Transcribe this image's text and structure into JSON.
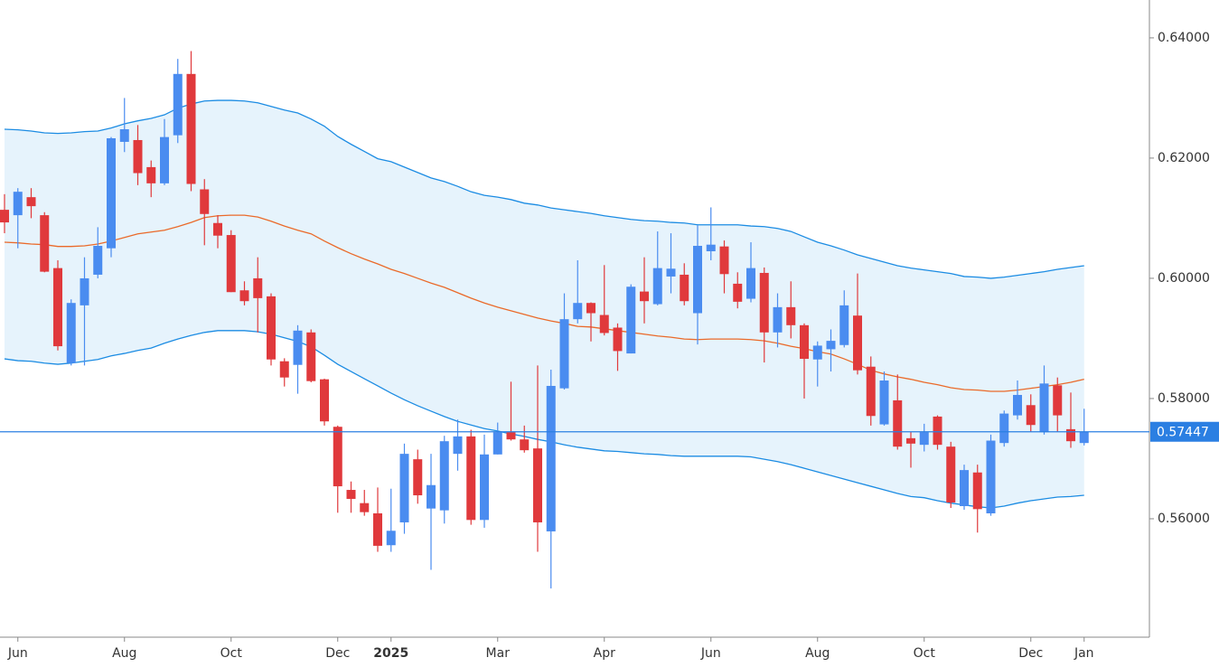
{
  "chart_data": {
    "type": "candlestick",
    "categories": [
      null,
      "Jun",
      null,
      null,
      null,
      null,
      null,
      null,
      null,
      "Aug",
      null,
      null,
      null,
      null,
      null,
      null,
      null,
      "Oct",
      null,
      null,
      null,
      null,
      null,
      null,
      null,
      "Dec",
      null,
      null,
      null,
      "2025",
      null,
      null,
      null,
      null,
      null,
      null,
      null,
      "Mar",
      null,
      null,
      null,
      null,
      null,
      null,
      null,
      "Apr",
      null,
      null,
      null,
      null,
      null,
      null,
      null,
      "Jun",
      null,
      null,
      null,
      null,
      null,
      null,
      null,
      "Aug",
      null,
      null,
      null,
      null,
      null,
      null,
      null,
      "Oct",
      null,
      null,
      null,
      null,
      null,
      null,
      null,
      "Dec",
      null,
      null,
      null,
      "Jan"
    ],
    "open": [
      0.6114,
      0.6105,
      0.6135,
      0.6105,
      0.6017,
      0.5859,
      0.5955,
      0.6006,
      0.605,
      0.6227,
      0.623,
      0.6185,
      0.6158,
      0.6238,
      0.634,
      0.6148,
      0.6092,
      0.6072,
      0.598,
      0.6,
      0.597,
      0.5862,
      0.5856,
      0.591,
      0.5832,
      0.5753,
      0.5648,
      0.5626,
      0.5609,
      0.5556,
      0.5594,
      0.5699,
      0.5617,
      0.5614,
      0.5708,
      0.5737,
      0.5598,
      0.5707,
      0.5744,
      0.5732,
      0.5717,
      0.5579,
      0.5817,
      0.5932,
      0.5959,
      0.5939,
      0.5918,
      0.5875,
      0.5978,
      0.5957,
      0.6003,
      0.6006,
      0.5942,
      0.6045,
      0.6053,
      0.5991,
      0.5966,
      0.6009,
      0.591,
      0.5952,
      0.5922,
      0.5865,
      0.5882,
      0.5889,
      0.5938,
      0.5853,
      0.5757,
      0.5797,
      0.5734,
      0.5723,
      0.577,
      0.572,
      0.5621,
      0.5677,
      0.5609,
      0.5726,
      0.5772,
      0.5789,
      0.5744,
      0.5822,
      0.5749,
      0.5726
    ],
    "high": [
      0.614,
      0.615,
      0.615,
      0.611,
      0.603,
      0.5965,
      0.6035,
      0.6085,
      0.6235,
      0.63,
      0.6255,
      0.6196,
      0.6265,
      0.6365,
      0.6378,
      0.6165,
      0.6105,
      0.608,
      0.5995,
      0.6035,
      0.5975,
      0.5867,
      0.5922,
      0.5915,
      0.5833,
      0.5755,
      0.5662,
      0.5648,
      0.5652,
      0.565,
      0.5725,
      0.5715,
      0.5708,
      0.5738,
      0.5765,
      0.5748,
      0.574,
      0.576,
      0.5828,
      0.5755,
      0.5855,
      0.5848,
      0.5975,
      0.603,
      0.596,
      0.6022,
      0.5925,
      0.599,
      0.6035,
      0.6078,
      0.6075,
      0.6025,
      0.6088,
      0.6118,
      0.6063,
      0.601,
      0.606,
      0.6018,
      0.5975,
      0.5995,
      0.5925,
      0.5895,
      0.5915,
      0.598,
      0.6008,
      0.587,
      0.5845,
      0.584,
      0.5745,
      0.5758,
      0.5772,
      0.5728,
      0.569,
      0.569,
      0.574,
      0.578,
      0.583,
      0.5807,
      0.5855,
      0.5835,
      0.581,
      0.5783
    ],
    "low": [
      0.6075,
      0.605,
      0.61,
      0.601,
      0.588,
      0.5855,
      0.5855,
      0.6,
      0.6035,
      0.621,
      0.6155,
      0.6135,
      0.6155,
      0.6225,
      0.6145,
      0.6055,
      0.605,
      0.5977,
      0.5955,
      0.591,
      0.5855,
      0.582,
      0.5808,
      0.5827,
      0.5755,
      0.561,
      0.561,
      0.5605,
      0.5545,
      0.5545,
      0.5575,
      0.5625,
      0.5515,
      0.5592,
      0.568,
      0.559,
      0.5585,
      0.5707,
      0.573,
      0.571,
      0.5545,
      0.5484,
      0.5815,
      0.5925,
      0.5895,
      0.5905,
      0.5846,
      0.5875,
      0.5925,
      0.5955,
      0.5975,
      0.5955,
      0.589,
      0.603,
      0.5975,
      0.595,
      0.596,
      0.586,
      0.5885,
      0.59,
      0.58,
      0.582,
      0.5845,
      0.5885,
      0.584,
      0.5755,
      0.5755,
      0.5715,
      0.5685,
      0.5712,
      0.5715,
      0.5618,
      0.5615,
      0.5577,
      0.5605,
      0.572,
      0.5765,
      0.5745,
      0.574,
      0.5745,
      0.5718,
      0.5722
    ],
    "close": [
      0.6093,
      0.6144,
      0.612,
      0.6011,
      0.5887,
      0.5959,
      0.6,
      0.6054,
      0.6233,
      0.6248,
      0.6175,
      0.6158,
      0.6235,
      0.634,
      0.6157,
      0.6107,
      0.6071,
      0.5977,
      0.5962,
      0.5967,
      0.5865,
      0.5835,
      0.5913,
      0.5829,
      0.5762,
      0.5654,
      0.5633,
      0.5611,
      0.5555,
      0.558,
      0.5708,
      0.5639,
      0.5656,
      0.5729,
      0.5737,
      0.5598,
      0.5707,
      0.5744,
      0.5732,
      0.5714,
      0.5594,
      0.5821,
      0.5932,
      0.5959,
      0.5942,
      0.5909,
      0.5879,
      0.5986,
      0.5962,
      0.6017,
      0.6016,
      0.5962,
      0.6054,
      0.6056,
      0.6007,
      0.5961,
      0.6017,
      0.591,
      0.5952,
      0.5922,
      0.5866,
      0.5888,
      0.5896,
      0.5955,
      0.5847,
      0.5771,
      0.583,
      0.572,
      0.5725,
      0.5744,
      0.5723,
      0.5627,
      0.5681,
      0.5616,
      0.573,
      0.5775,
      0.5806,
      0.5756,
      0.5825,
      0.5772,
      0.5729,
      0.5745
    ],
    "up_color": "#4a8cf0",
    "down_color": "#e0393c",
    "bands": {
      "fill": "#e6f3fc",
      "upper": {
        "color": "#1c8ce3",
        "values": [
          0.6248,
          0.6247,
          0.6245,
          0.6242,
          0.6241,
          0.6242,
          0.6244,
          0.6245,
          0.625,
          0.6257,
          0.6262,
          0.6266,
          0.6272,
          0.6283,
          0.629,
          0.6295,
          0.6296,
          0.6296,
          0.6295,
          0.6292,
          0.6286,
          0.628,
          0.6275,
          0.6265,
          0.6253,
          0.6236,
          0.6223,
          0.6211,
          0.6199,
          0.6194,
          0.6185,
          0.6176,
          0.6167,
          0.6161,
          0.6153,
          0.6144,
          0.6138,
          0.6135,
          0.6131,
          0.6125,
          0.6122,
          0.6117,
          0.6114,
          0.6111,
          0.6108,
          0.6104,
          0.6101,
          0.6098,
          0.6096,
          0.6095,
          0.6093,
          0.6092,
          0.6089,
          0.6089,
          0.6089,
          0.6089,
          0.6087,
          0.6086,
          0.6083,
          0.6078,
          0.6069,
          0.606,
          0.6054,
          0.6047,
          0.6039,
          0.6033,
          0.6027,
          0.6021,
          0.6017,
          0.6014,
          0.6011,
          0.6008,
          0.6003,
          0.6002,
          0.6,
          0.6002,
          0.6005,
          0.6008,
          0.6011,
          0.6015,
          0.6018,
          0.6021
        ]
      },
      "middle": {
        "color": "#ea6a2a",
        "values": [
          0.606,
          0.6059,
          0.6057,
          0.6056,
          0.6053,
          0.6053,
          0.6054,
          0.6057,
          0.6062,
          0.6068,
          0.6074,
          0.6077,
          0.608,
          0.6086,
          0.6093,
          0.6101,
          0.6104,
          0.6105,
          0.6105,
          0.6102,
          0.6095,
          0.6087,
          0.608,
          0.6074,
          0.6062,
          0.6051,
          0.6041,
          0.6032,
          0.6024,
          0.6015,
          0.6008,
          0.6,
          0.5992,
          0.5985,
          0.5976,
          0.5967,
          0.5959,
          0.5952,
          0.5946,
          0.594,
          0.5934,
          0.5929,
          0.5925,
          0.592,
          0.5919,
          0.5916,
          0.5913,
          0.591,
          0.5907,
          0.5904,
          0.5902,
          0.5899,
          0.5898,
          0.5899,
          0.5899,
          0.5899,
          0.5898,
          0.5896,
          0.5892,
          0.5887,
          0.5883,
          0.5878,
          0.5874,
          0.5866,
          0.5857,
          0.5847,
          0.5841,
          0.5836,
          0.5832,
          0.5827,
          0.5823,
          0.5818,
          0.5815,
          0.5814,
          0.5812,
          0.5812,
          0.5814,
          0.5817,
          0.582,
          0.5823,
          0.5827,
          0.5832
        ]
      },
      "lower": {
        "color": "#1c8ce3",
        "values": [
          0.5866,
          0.5863,
          0.5862,
          0.5859,
          0.5857,
          0.5859,
          0.5862,
          0.5865,
          0.5871,
          0.5875,
          0.588,
          0.5884,
          0.5892,
          0.5899,
          0.5905,
          0.591,
          0.5913,
          0.5913,
          0.5913,
          0.5911,
          0.5907,
          0.5901,
          0.5895,
          0.5886,
          0.5872,
          0.5857,
          0.5845,
          0.5833,
          0.5821,
          0.5809,
          0.5798,
          0.5788,
          0.5779,
          0.577,
          0.5762,
          0.5756,
          0.575,
          0.5746,
          0.5741,
          0.5737,
          0.5732,
          0.5728,
          0.5723,
          0.5719,
          0.5716,
          0.5713,
          0.5712,
          0.571,
          0.5708,
          0.5707,
          0.5705,
          0.5704,
          0.5704,
          0.5704,
          0.5704,
          0.5704,
          0.5703,
          0.5699,
          0.5695,
          0.569,
          0.5684,
          0.5678,
          0.5672,
          0.5666,
          0.566,
          0.5654,
          0.5648,
          0.5642,
          0.5637,
          0.5635,
          0.563,
          0.5626,
          0.5623,
          0.562,
          0.5618,
          0.5621,
          0.5626,
          0.563,
          0.5633,
          0.5636,
          0.5637,
          0.5639
        ]
      }
    },
    "last_price": 0.57447,
    "last_price_color": "#2b7fe2",
    "ylim": [
      0.5403,
      0.6463
    ],
    "yticks": [
      {
        "value": 0.56,
        "label": "0.56000"
      },
      {
        "value": 0.58,
        "label": "0.58000"
      },
      {
        "value": 0.6,
        "label": "0.60000"
      },
      {
        "value": 0.62,
        "label": "0.62000"
      },
      {
        "value": 0.64,
        "label": "0.64000"
      }
    ]
  }
}
